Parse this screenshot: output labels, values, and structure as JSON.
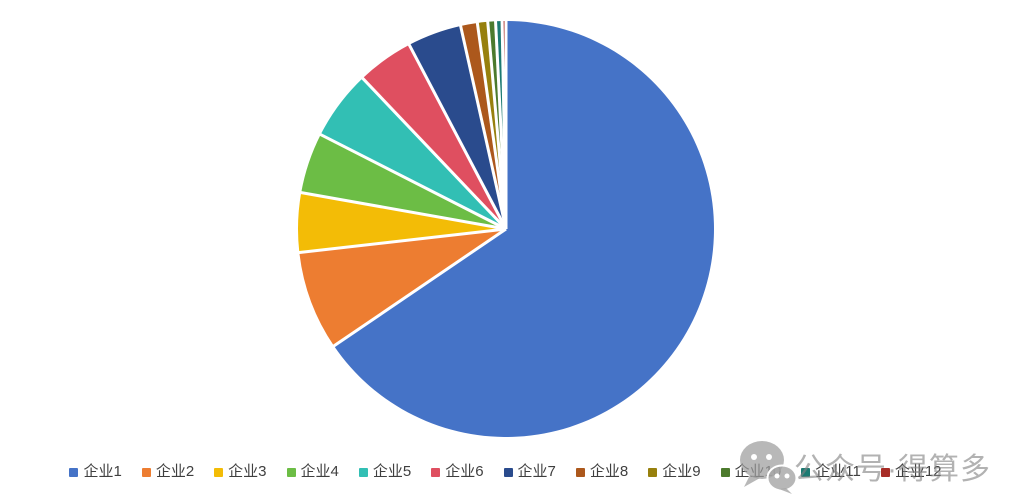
{
  "background_color": "#FFFFFF",
  "chart_data": {
    "type": "pie",
    "title": "",
    "categories": [
      "企业1",
      "企业2",
      "企业3",
      "企业4",
      "企业5",
      "企业6",
      "企业7",
      "企业8",
      "企业9",
      "企业10",
      "企业11",
      "企业12"
    ],
    "values": [
      65.5,
      7.7,
      4.6,
      4.7,
      5.4,
      4.4,
      4.2,
      1.3,
      0.8,
      0.6,
      0.5,
      0.3
    ],
    "value_note": "percent of total, estimated from slice arc angles; chart displays no data labels",
    "colors": [
      "#4573C7",
      "#ED7D31",
      "#F3BC06",
      "#6CBD45",
      "#32BFB4",
      "#DF4F60",
      "#2A4B8D",
      "#AC581C",
      "#97800D",
      "#4C7A2D",
      "#1C7A72",
      "#A72C26"
    ],
    "start_angle_deg": 0,
    "direction": "clockwise",
    "slice_gap_color": "#FFFFFF",
    "grid": false,
    "legend_position": "bottom"
  },
  "legend": {
    "text_color": "#3F3F3F",
    "items": [
      {
        "label": "企业1",
        "color": "#4573C7"
      },
      {
        "label": "企业2",
        "color": "#ED7D31"
      },
      {
        "label": "企业3",
        "color": "#F3BC06"
      },
      {
        "label": "企业4",
        "color": "#6CBD45"
      },
      {
        "label": "企业5",
        "color": "#32BFB4"
      },
      {
        "label": "企业6",
        "color": "#DF4F60"
      },
      {
        "label": "企业7",
        "color": "#2A4B8D"
      },
      {
        "label": "企业8",
        "color": "#AC581C"
      },
      {
        "label": "企业9",
        "color": "#97800D"
      },
      {
        "label": "企业10",
        "color": "#4C7A2D"
      },
      {
        "label": "企业11",
        "color": "#1C7A72"
      },
      {
        "label": "企业12",
        "color": "#A72C26"
      }
    ]
  },
  "watermark": {
    "icon": "wechat-icon",
    "text": "公众号·得算多",
    "color": "#ABABAB"
  }
}
